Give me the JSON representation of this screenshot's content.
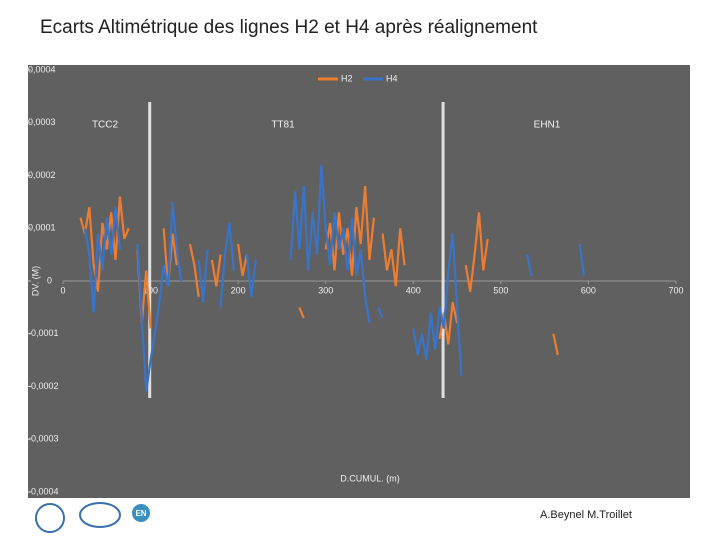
{
  "title": "Ecarts Altimétrique des lignes H2 et H4 après réalignement",
  "footer": {
    "authors": "A.Beynel M.Troillet",
    "logo_text": "EN"
  },
  "chart_data": {
    "type": "line",
    "xlabel": "D.CUMUL. (m)",
    "ylabel": "DV. (M)",
    "xlim": [
      0,
      700
    ],
    "xticks": [
      0,
      100,
      200,
      300,
      400,
      500,
      600,
      700
    ],
    "ylim": [
      -0.0004,
      0.0004
    ],
    "yticks": [
      {
        "value": -0.0004,
        "label": "-0,0004"
      },
      {
        "value": -0.0003,
        "label": "-0,0003"
      },
      {
        "value": -0.0002,
        "label": "-0,0002"
      },
      {
        "value": -0.0001,
        "label": "-0,0001"
      },
      0,
      {
        "value": 0.0001,
        "label": "0,0001"
      },
      {
        "value": 0.0002,
        "label": "0,0002"
      },
      {
        "value": 0.0003,
        "label": "0,0003"
      },
      {
        "value": 0.0004,
        "label": "0,0004"
      }
    ],
    "annotations": [
      "TCC2",
      "TT81",
      "EHN1"
    ],
    "section_lines": [
      99,
      434
    ],
    "legend": "top",
    "series": [
      {
        "name": "H2",
        "color": "#ed7d31",
        "x": [
          20,
          25,
          30,
          35,
          40,
          45,
          50,
          55,
          60,
          65,
          70,
          75,
          80,
          85,
          90,
          95,
          100,
          108,
          115,
          120,
          125,
          130,
          138,
          145,
          150,
          155,
          160,
          170,
          175,
          180,
          185,
          200,
          205,
          210,
          220,
          270,
          275,
          280,
          300,
          305,
          310,
          315,
          320,
          325,
          330,
          335,
          340,
          345,
          350,
          355,
          360,
          365,
          370,
          375,
          380,
          385,
          390,
          395,
          430,
          435,
          440,
          445,
          450,
          455,
          460,
          465,
          470,
          475,
          480,
          485,
          490,
          560,
          565
        ],
        "values": [
          0.00012,
          9e-05,
          0.00014,
          3e-05,
          -2e-05,
          0.00011,
          6e-05,
          0.00013,
          4e-05,
          0.00016,
          8e-05,
          0.0001,
          null,
          6e-05,
          -8e-05,
          2e-05,
          -9e-05,
          null,
          0.0001,
          -1e-05,
          9e-05,
          3e-05,
          null,
          7e-05,
          3e-05,
          -3e-05,
          null,
          4e-05,
          -1e-05,
          5e-05,
          null,
          7e-05,
          1e-05,
          5e-05,
          null,
          -5e-05,
          -7e-05,
          null,
          6e-05,
          0.00011,
          2e-05,
          0.00013,
          5e-05,
          0.0001,
          1e-05,
          0.00014,
          7e-05,
          0.00018,
          4e-05,
          0.00012,
          null,
          9e-05,
          2e-05,
          6e-05,
          -1e-05,
          0.0001,
          3e-05,
          null,
          -0.00011,
          -6e-05,
          -0.00012,
          -4e-05,
          -8e-05,
          null,
          3e-05,
          -2e-05,
          5e-05,
          0.00013,
          2e-05,
          8e-05,
          null,
          -0.0001,
          -0.00014
        ]
      },
      {
        "name": "H4",
        "color": "#3a74c8",
        "x": [
          25,
          30,
          35,
          40,
          45,
          50,
          55,
          60,
          65,
          70,
          85,
          90,
          95,
          100,
          105,
          110,
          115,
          120,
          125,
          130,
          135,
          140,
          155,
          160,
          165,
          170,
          180,
          185,
          190,
          195,
          200,
          210,
          215,
          220,
          225,
          260,
          265,
          270,
          275,
          280,
          285,
          290,
          295,
          300,
          305,
          310,
          315,
          320,
          325,
          330,
          335,
          340,
          345,
          350,
          355,
          360,
          365,
          370,
          400,
          405,
          410,
          415,
          420,
          425,
          430,
          435,
          440,
          445,
          450,
          455,
          460,
          530,
          535,
          545,
          590,
          595
        ],
        "values": [
          0.0001,
          5e-05,
          -6e-05,
          9e-05,
          2e-05,
          0.00012,
          5e-05,
          0.00014,
          6e-05,
          null,
          7e-05,
          -7e-05,
          -0.00021,
          -0.00015,
          -0.0001,
          -4e-05,
          3e-05,
          -1e-05,
          0.00015,
          6e-05,
          0,
          null,
          4e-05,
          -4e-05,
          6e-05,
          null,
          -5e-05,
          5e-05,
          0.00011,
          2e-05,
          null,
          5e-05,
          -3e-05,
          4e-05,
          null,
          4e-05,
          0.00017,
          6e-05,
          0.00018,
          2e-05,
          0.00013,
          5e-05,
          0.00022,
          0.0001,
          3e-05,
          0.00013,
          6e-05,
          0.0001,
          2e-05,
          0.00012,
          1e-05,
          6e-05,
          -3e-05,
          -8e-05,
          null,
          -5e-05,
          -7e-05,
          null,
          -9e-05,
          -0.00014,
          -0.0001,
          -0.00015,
          -6e-05,
          -0.00013,
          -5e-05,
          -9e-05,
          2e-05,
          9e-05,
          -5e-05,
          -0.00018,
          null,
          5e-05,
          1e-05,
          null,
          7e-05,
          1e-05
        ]
      }
    ]
  }
}
